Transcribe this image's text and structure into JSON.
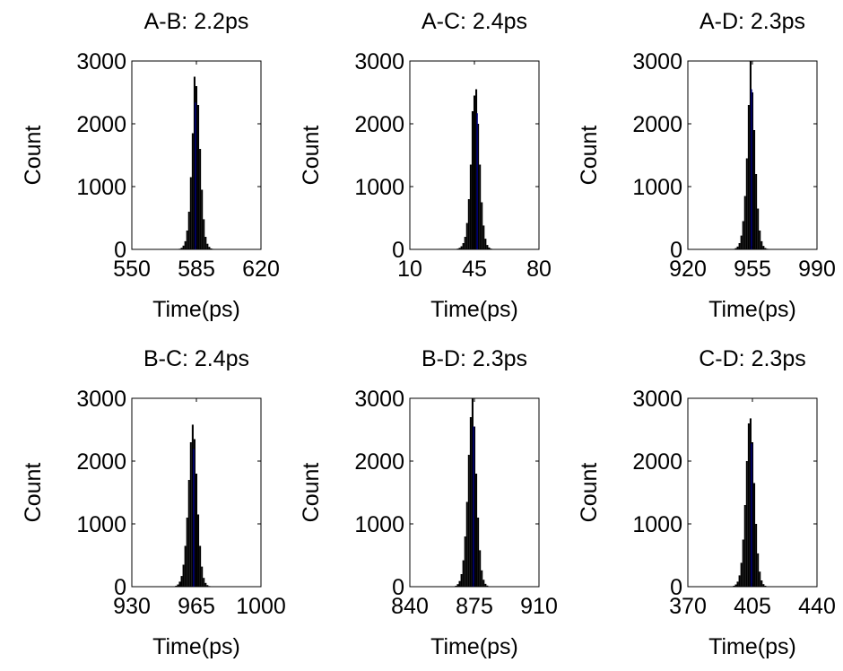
{
  "chart_data": [
    {
      "type": "bar",
      "title": "A-B: 2.2ps",
      "xlabel": "Time(ps)",
      "ylabel": "Count",
      "xlim": [
        550,
        620
      ],
      "ylim": [
        0,
        3000
      ],
      "xticks": [
        "550",
        "585",
        "620"
      ],
      "yticks": [
        "0",
        "1000",
        "2000",
        "3000"
      ],
      "bin_width": 1,
      "x": [
        576,
        577,
        578,
        579,
        580,
        581,
        582,
        583,
        584,
        585,
        586,
        587,
        588,
        589,
        590,
        591,
        592,
        593,
        594,
        595
      ],
      "values": [
        10,
        25,
        60,
        130,
        300,
        600,
        1150,
        1850,
        2750,
        2600,
        2300,
        1600,
        950,
        480,
        200,
        90,
        40,
        15,
        8,
        3
      ],
      "fit_line_color": "#00007f"
    },
    {
      "type": "bar",
      "title": "A-C: 2.4ps",
      "xlabel": "Time(ps)",
      "ylabel": "Count",
      "xlim": [
        10,
        80
      ],
      "ylim": [
        0,
        3000
      ],
      "xticks": [
        "10",
        "45",
        "80"
      ],
      "yticks": [
        "0",
        "1000",
        "2000",
        "3000"
      ],
      "bin_width": 1,
      "x": [
        35,
        36,
        37,
        38,
        39,
        40,
        41,
        42,
        43,
        44,
        45,
        46,
        47,
        48,
        49,
        50,
        51,
        52,
        53,
        54,
        55,
        56
      ],
      "values": [
        5,
        12,
        25,
        50,
        100,
        200,
        420,
        800,
        1350,
        2200,
        2450,
        2550,
        2000,
        1350,
        750,
        380,
        170,
        70,
        30,
        12,
        5,
        2
      ],
      "fit_line_color": "#00007f"
    },
    {
      "type": "bar",
      "title": "A-D: 2.3ps",
      "xlabel": "Time(ps)",
      "ylabel": "Count",
      "xlim": [
        920,
        990
      ],
      "ylim": [
        0,
        3000
      ],
      "xticks": [
        "920",
        "955",
        "990"
      ],
      "yticks": [
        "0",
        "1000",
        "2000",
        "3000"
      ],
      "bin_width": 1,
      "x": [
        945,
        946,
        947,
        948,
        949,
        950,
        951,
        952,
        953,
        954,
        955,
        956,
        957,
        958,
        959,
        960,
        961,
        962,
        963,
        964,
        965
      ],
      "values": [
        8,
        20,
        45,
        100,
        220,
        450,
        850,
        1450,
        2300,
        3000,
        2500,
        1900,
        1200,
        650,
        300,
        130,
        55,
        22,
        10,
        4,
        2
      ],
      "fit_line_color": "#00007f"
    },
    {
      "type": "bar",
      "title": "B-C: 2.4ps",
      "xlabel": "Time(ps)",
      "ylabel": "Count",
      "xlim": [
        930,
        1000
      ],
      "ylim": [
        0,
        3000
      ],
      "xticks": [
        "930",
        "965",
        "1000"
      ],
      "yticks": [
        "0",
        "1000",
        "2000",
        "3000"
      ],
      "bin_width": 1,
      "x": [
        953,
        954,
        955,
        956,
        957,
        958,
        959,
        960,
        961,
        962,
        963,
        964,
        965,
        966,
        967,
        968,
        969,
        970,
        971,
        972,
        973
      ],
      "values": [
        5,
        15,
        35,
        80,
        170,
        350,
        650,
        1100,
        1700,
        2300,
        2580,
        2350,
        1800,
        1150,
        650,
        320,
        140,
        60,
        25,
        10,
        4
      ],
      "fit_line_color": "#00007f"
    },
    {
      "type": "bar",
      "title": "B-D: 2.3ps",
      "xlabel": "Time(ps)",
      "ylabel": "Count",
      "xlim": [
        840,
        910
      ],
      "ylim": [
        0,
        3000
      ],
      "xticks": [
        "840",
        "875",
        "910"
      ],
      "yticks": [
        "0",
        "1000",
        "2000",
        "3000"
      ],
      "bin_width": 1,
      "x": [
        864,
        865,
        866,
        867,
        868,
        869,
        870,
        871,
        872,
        873,
        874,
        875,
        876,
        877,
        878,
        879,
        880,
        881,
        882,
        883,
        884
      ],
      "values": [
        5,
        15,
        40,
        90,
        200,
        420,
        800,
        1350,
        2100,
        2700,
        3000,
        2550,
        1800,
        1100,
        580,
        260,
        110,
        45,
        18,
        7,
        3
      ],
      "fit_line_color": "#00007f"
    },
    {
      "type": "bar",
      "title": "C-D: 2.3ps",
      "xlabel": "Time(ps)",
      "ylabel": "Count",
      "xlim": [
        370,
        440
      ],
      "ylim": [
        0,
        3000
      ],
      "xticks": [
        "370",
        "405",
        "440"
      ],
      "yticks": [
        "0",
        "1000",
        "2000",
        "3000"
      ],
      "bin_width": 1,
      "x": [
        394,
        395,
        396,
        397,
        398,
        399,
        400,
        401,
        402,
        403,
        404,
        405,
        406,
        407,
        408,
        409,
        410,
        411,
        412,
        413,
        414
      ],
      "values": [
        5,
        15,
        35,
        80,
        180,
        380,
        750,
        1300,
        2000,
        2600,
        2680,
        2300,
        1650,
        1000,
        530,
        240,
        100,
        40,
        15,
        6,
        2
      ],
      "fit_line_color": "#00007f"
    }
  ]
}
